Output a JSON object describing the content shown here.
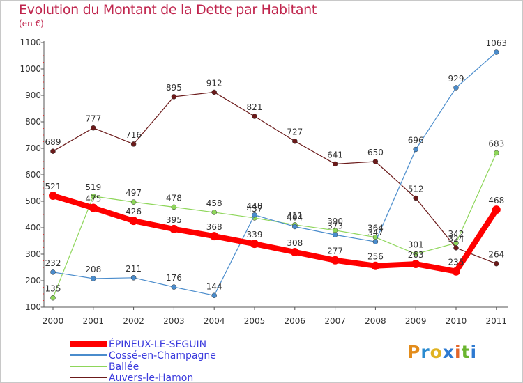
{
  "chart_data": {
    "type": "line",
    "title": "Evolution du Montant de la Dette par Habitant",
    "subtitle": "(en €)",
    "categories": [
      "2000",
      "2001",
      "2002",
      "2003",
      "2004",
      "2005",
      "2006",
      "2007",
      "2008",
      "2009",
      "2010",
      "2011"
    ],
    "ylim": [
      100,
      1100
    ],
    "yticks": [
      100,
      200,
      300,
      400,
      500,
      600,
      700,
      800,
      900,
      1000,
      1100
    ],
    "grid": false,
    "legend_position": "bottom-left",
    "series": [
      {
        "name": "ÉPINEUX-LE-SEGUIN",
        "color": "#ff0000",
        "values": [
          521,
          475,
          426,
          395,
          368,
          339,
          308,
          277,
          256,
          263,
          235,
          468
        ]
      },
      {
        "name": "Cossé-en-Champagne",
        "color": "#4a8ccc",
        "values": [
          232,
          208,
          211,
          176,
          144,
          448,
          404,
          373,
          347,
          696,
          929,
          1063
        ]
      },
      {
        "name": "Ballée",
        "color": "#8ed65a",
        "values": [
          135,
          519,
          497,
          478,
          458,
          437,
          411,
          390,
          364,
          301,
          342,
          683
        ]
      },
      {
        "name": "Auvers-le-Hamon",
        "color": "#6b1a1a",
        "values": [
          689,
          777,
          716,
          895,
          912,
          821,
          727,
          641,
          650,
          512,
          324,
          264
        ]
      }
    ]
  },
  "logo": {
    "text": "Proxiti",
    "letters": [
      "P",
      "r",
      "o",
      "x",
      "i",
      "t",
      "i"
    ]
  }
}
